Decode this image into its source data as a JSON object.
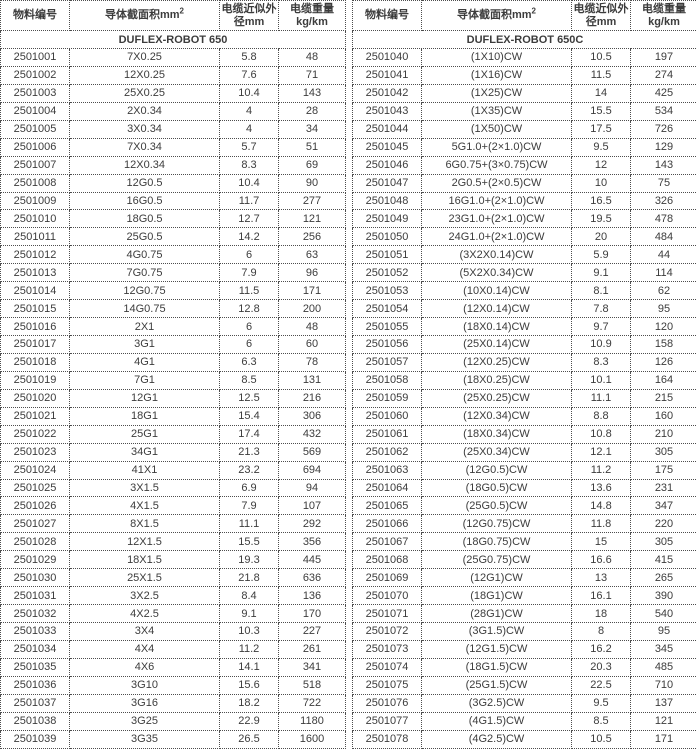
{
  "columns": {
    "material_no": "物料编号",
    "conductor_area": "导体截面积mm",
    "conductor_area_sup": "2",
    "outer_diameter_line1": "电缆近似外",
    "outer_diameter_line2": "径mm",
    "weight_line1": "电缆重量",
    "weight_line2": "kg/km"
  },
  "tables": [
    {
      "title": "DUFLEX-ROBOT 650",
      "rows": [
        [
          "2501001",
          "7X0.25",
          "5.8",
          "48"
        ],
        [
          "2501002",
          "12X0.25",
          "7.6",
          "71"
        ],
        [
          "2501003",
          "25X0.25",
          "10.4",
          "143"
        ],
        [
          "2501004",
          "2X0.34",
          "4",
          "28"
        ],
        [
          "2501005",
          "3X0.34",
          "4",
          "34"
        ],
        [
          "2501006",
          "7X0.34",
          "5.7",
          "51"
        ],
        [
          "2501007",
          "12X0.34",
          "8.3",
          "69"
        ],
        [
          "2501008",
          "12G0.5",
          "10.4",
          "90"
        ],
        [
          "2501009",
          "16G0.5",
          "11.7",
          "277"
        ],
        [
          "2501010",
          "18G0.5",
          "12.7",
          "121"
        ],
        [
          "2501011",
          "25G0.5",
          "14.2",
          "256"
        ],
        [
          "2501012",
          "4G0.75",
          "6",
          "63"
        ],
        [
          "2501013",
          "7G0.75",
          "7.9",
          "96"
        ],
        [
          "2501014",
          "12G0.75",
          "11.5",
          "171"
        ],
        [
          "2501015",
          "14G0.75",
          "12.8",
          "200"
        ],
        [
          "2501016",
          "2X1",
          "6",
          "48"
        ],
        [
          "2501017",
          "3G1",
          "6",
          "60"
        ],
        [
          "2501018",
          "4G1",
          "6.3",
          "78"
        ],
        [
          "2501019",
          "7G1",
          "8.5",
          "131"
        ],
        [
          "2501020",
          "12G1",
          "12.5",
          "216"
        ],
        [
          "2501021",
          "18G1",
          "15.4",
          "306"
        ],
        [
          "2501022",
          "25G1",
          "17.4",
          "432"
        ],
        [
          "2501023",
          "34G1",
          "21.3",
          "569"
        ],
        [
          "2501024",
          "41X1",
          "23.2",
          "694"
        ],
        [
          "2501025",
          "3X1.5",
          "6.9",
          "94"
        ],
        [
          "2501026",
          "4X1.5",
          "7.9",
          "107"
        ],
        [
          "2501027",
          "8X1.5",
          "11.1",
          "292"
        ],
        [
          "2501028",
          "12X1.5",
          "15.5",
          "356"
        ],
        [
          "2501029",
          "18X1.5",
          "19.3",
          "445"
        ],
        [
          "2501030",
          "25X1.5",
          "21.8",
          "636"
        ],
        [
          "2501031",
          "3X2.5",
          "8.4",
          "136"
        ],
        [
          "2501032",
          "4X2.5",
          "9.1",
          "170"
        ],
        [
          "2501033",
          "3X4",
          "10.3",
          "227"
        ],
        [
          "2501034",
          "4X4",
          "11.2",
          "261"
        ],
        [
          "2501035",
          "4X6",
          "14.1",
          "341"
        ],
        [
          "2501036",
          "3G10",
          "15.6",
          "518"
        ],
        [
          "2501037",
          "3G16",
          "18.2",
          "722"
        ],
        [
          "2501038",
          "3G25",
          "22.9",
          "1180"
        ],
        [
          "2501039",
          "3G35",
          "26.5",
          "1600"
        ]
      ]
    },
    {
      "title": "DUFLEX-ROBOT 650C",
      "rows": [
        [
          "2501040",
          "(1X10)CW",
          "10.5",
          "197"
        ],
        [
          "2501041",
          "(1X16)CW",
          "11.5",
          "274"
        ],
        [
          "2501042",
          "(1X25)CW",
          "14",
          "425"
        ],
        [
          "2501043",
          "(1X35)CW",
          "15.5",
          "534"
        ],
        [
          "2501044",
          "(1X50)CW",
          "17.5",
          "726"
        ],
        [
          "2501045",
          "5G1.0+(2×1.0)CW",
          "9.5",
          "129"
        ],
        [
          "2501046",
          "6G0.75+(3×0.75)CW",
          "12",
          "143"
        ],
        [
          "2501047",
          "2G0.5+(2×0.5)CW",
          "10",
          "75"
        ],
        [
          "2501048",
          "16G1.0+(2×1.0)CW",
          "16.5",
          "326"
        ],
        [
          "2501049",
          "23G1.0+(2×1.0)CW",
          "19.5",
          "478"
        ],
        [
          "2501050",
          "24G1.0+(2×1.0)CW",
          "20",
          "484"
        ],
        [
          "2501051",
          "(3X2X0.14)CW",
          "5.9",
          "44"
        ],
        [
          "2501052",
          "(5X2X0.34)CW",
          "9.1",
          "114"
        ],
        [
          "2501053",
          "(10X0.14)CW",
          "8.1",
          "62"
        ],
        [
          "2501054",
          "(12X0.14)CW",
          "7.8",
          "95"
        ],
        [
          "2501055",
          "(18X0.14)CW",
          "9.7",
          "120"
        ],
        [
          "2501056",
          "(25X0.14)CW",
          "10.9",
          "158"
        ],
        [
          "2501057",
          "(12X0.25)CW",
          "8.3",
          "126"
        ],
        [
          "2501058",
          "(18X0.25)CW",
          "10.1",
          "164"
        ],
        [
          "2501059",
          "(25X0.25)CW",
          "11.1",
          "215"
        ],
        [
          "2501060",
          "(12X0.34)CW",
          "8.8",
          "160"
        ],
        [
          "2501061",
          "(18X0.34)CW",
          "10.8",
          "210"
        ],
        [
          "2501062",
          "(25X0.34)CW",
          "12.1",
          "305"
        ],
        [
          "2501063",
          "(12G0.5)CW",
          "11.2",
          "175"
        ],
        [
          "2501064",
          "(18G0.5)CW",
          "13.6",
          "231"
        ],
        [
          "2501065",
          "(25G0.5)CW",
          "14.8",
          "347"
        ],
        [
          "2501066",
          "(12G0.75)CW",
          "11.8",
          "220"
        ],
        [
          "2501067",
          "(18G0.75)CW",
          "15",
          "305"
        ],
        [
          "2501068",
          "(25G0.75)CW",
          "16.6",
          "415"
        ],
        [
          "2501069",
          "(12G1)CW",
          "13",
          "265"
        ],
        [
          "2501070",
          "(18G1)CW",
          "16.1",
          "390"
        ],
        [
          "2501071",
          "(28G1)CW",
          "18",
          "540"
        ],
        [
          "2501072",
          "(3G1.5)CW",
          "8",
          "95"
        ],
        [
          "2501073",
          "(12G1.5)CW",
          "16.2",
          "345"
        ],
        [
          "2501074",
          "(18G1.5)CW",
          "20.3",
          "485"
        ],
        [
          "2501075",
          "(25G1.5)CW",
          "22.5",
          "710"
        ],
        [
          "2501076",
          "(3G2.5)CW",
          "9.5",
          "137"
        ],
        [
          "2501077",
          "(4G1.5)CW",
          "8.5",
          "121"
        ],
        [
          "2501078",
          "(4G2.5)CW",
          "10.5",
          "171"
        ]
      ]
    }
  ]
}
